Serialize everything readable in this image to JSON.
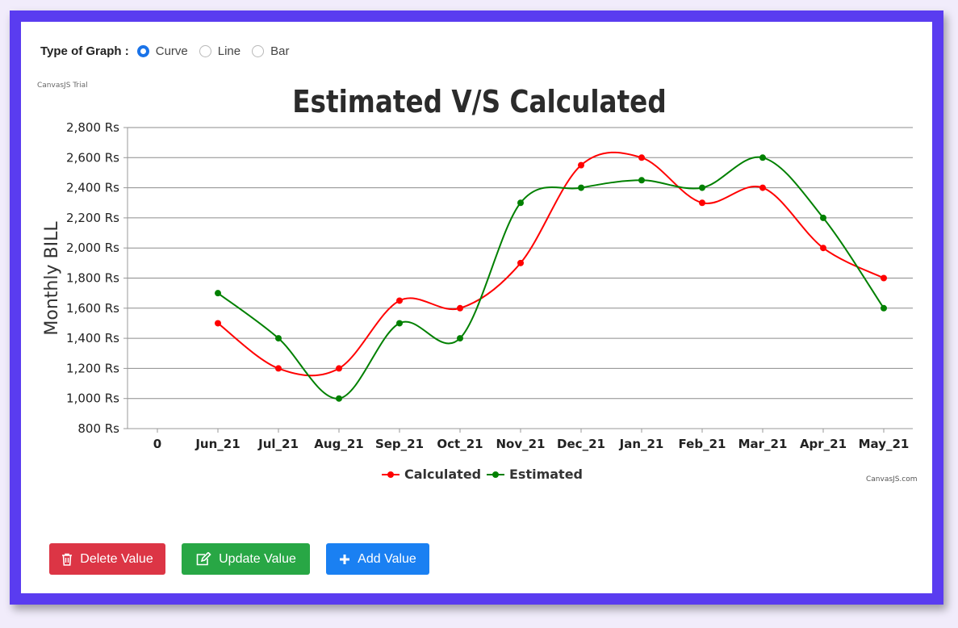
{
  "graph_type": {
    "label": "Type of Graph :",
    "options": [
      "Curve",
      "Line",
      "Bar"
    ],
    "selected": "Curve"
  },
  "watermark": "CanvasJS Trial",
  "credit": "CanvasJS.com",
  "chart_data": {
    "type": "line",
    "smooth": true,
    "title": "Estimated V/S Calculated",
    "xlabel": "",
    "ylabel": "Monthly BILL",
    "categories": [
      "0",
      "Jun_21",
      "Jul_21",
      "Aug_21",
      "Sep_21",
      "Oct_21",
      "Nov_21",
      "Dec_21",
      "Jan_21",
      "Feb_21",
      "Mar_21",
      "Apr_21",
      "May_21"
    ],
    "y_ticks": [
      "800 Rs",
      "1,000 Rs",
      "1,200 Rs",
      "1,400 Rs",
      "1,600 Rs",
      "1,800 Rs",
      "2,000 Rs",
      "2,200 Rs",
      "2,400 Rs",
      "2,600 Rs",
      "2,800 Rs"
    ],
    "ylim": [
      800,
      2800
    ],
    "grid": true,
    "legend_position": "bottom",
    "series": [
      {
        "name": "Calculated",
        "color": "#ff0000",
        "values": [
          null,
          1500,
          1200,
          1200,
          1650,
          1600,
          1900,
          2550,
          2600,
          2300,
          2400,
          2000,
          1800
        ]
      },
      {
        "name": "Estimated",
        "color": "#008000",
        "values": [
          null,
          1700,
          1400,
          1000,
          1500,
          1400,
          2300,
          2400,
          2450,
          2400,
          2600,
          2200,
          1600
        ]
      }
    ]
  },
  "buttons": {
    "delete": {
      "label": "Delete Value",
      "color": "#dc3545"
    },
    "update": {
      "label": "Update Value",
      "color": "#28a745"
    },
    "add": {
      "label": "Add Value",
      "color": "#1a80f2"
    }
  }
}
